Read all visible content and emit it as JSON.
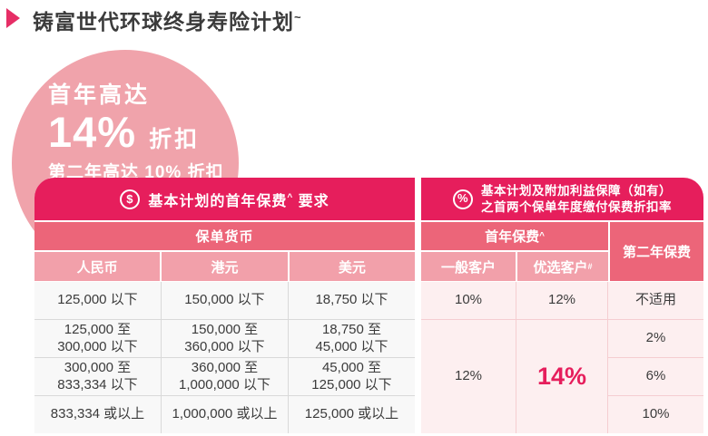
{
  "title": {
    "text": "铸富世代环球终身寿险计划",
    "sup": "~"
  },
  "badge": {
    "line1": "首年高达",
    "big_value": "14%",
    "big_suffix": "折扣",
    "line3": "第二年高达 10% 折扣"
  },
  "colors": {
    "header_crimson": "#e61e5c",
    "medium_pink": "#ec6579",
    "light_pink": "#f2a0aa",
    "badge_pink": "#f0a3ab",
    "right_body_pink": "#fdeff0",
    "highlight_value": "#e61e5c"
  },
  "left_table": {
    "icon_glyph": "$",
    "header_pre": "基本计划的首年保费",
    "header_sup": "^",
    "header_post": "要求",
    "subheader": "保单货币",
    "columns": [
      "人民币",
      "港元",
      "美元"
    ],
    "rows": [
      [
        "125,000 以下",
        "150,000 以下",
        "18,750 以下"
      ],
      [
        "125,000 至\n300,000 以下",
        "150,000 至\n360,000 以下",
        "18,750 至\n45,000 以下"
      ],
      [
        "300,000 至\n833,334 以下",
        "360,000 至\n1,000,000 以下",
        "45,000 至\n125,000 以下"
      ],
      [
        "833,334 或以上",
        "1,000,000 或以上",
        "125,000 或以上"
      ]
    ]
  },
  "right_table": {
    "icon_glyph": "%",
    "header_line1": "基本计划及附加利益保障（如有）",
    "header_line2": "之首两个保单年度缴付保费折扣率",
    "group_first_year": "首年保费",
    "group_first_year_sup": "^",
    "col_general": "一般客户",
    "col_select": "优选客户",
    "col_select_sup": "#",
    "col_second_year": "第二年保费",
    "row1": [
      "10%",
      "12%",
      "不适用"
    ],
    "merged_general": "12%",
    "merged_select": "14%",
    "second_year_values": [
      "2%",
      "6%",
      "10%"
    ]
  }
}
